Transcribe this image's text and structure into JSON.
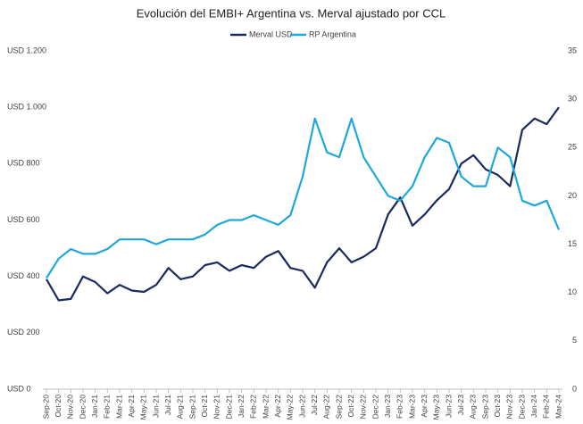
{
  "chart_data": {
    "type": "line",
    "title": "Evolución del EMBI+ Argentina vs. Merval ajustado por CCL",
    "categories": [
      "Sep-20",
      "Oct-20",
      "Nov-20",
      "Dec-20",
      "Jan-21",
      "Feb-21",
      "Mar-21",
      "Apr-21",
      "May-21",
      "Jun-21",
      "Jul-21",
      "Aug-21",
      "Sep-21",
      "Oct-21",
      "Nov-21",
      "Dec-21",
      "Jan-22",
      "Feb-22",
      "Mar-22",
      "Apr-22",
      "May-22",
      "Jun-22",
      "Jul-22",
      "Aug-22",
      "Sep-22",
      "Oct-22",
      "Nov-22",
      "Dec-22",
      "Jan-23",
      "Feb-23",
      "Mar-23",
      "Apr-23",
      "May-23",
      "Jun-23",
      "Jul-23",
      "Aug-23",
      "Sep-23",
      "Oct-23",
      "Nov-23",
      "Dec-23",
      "Jan-24",
      "Feb-24",
      "Mar-24"
    ],
    "series": [
      {
        "name": "Merval USD",
        "color": "#1b2a5e",
        "axis": "y",
        "values": [
          390,
          315,
          320,
          400,
          380,
          340,
          370,
          350,
          345,
          370,
          430,
          390,
          400,
          440,
          450,
          420,
          440,
          430,
          470,
          490,
          430,
          420,
          360,
          450,
          500,
          450,
          470,
          500,
          620,
          680,
          580,
          620,
          670,
          710,
          800,
          830,
          780,
          760,
          720,
          920,
          960,
          940,
          1000
        ]
      },
      {
        "name": "RP Argentina",
        "color": "#1fa7dc",
        "axis": "y2",
        "values": [
          11.5,
          13.5,
          14.5,
          14,
          14,
          14.5,
          15.5,
          15.5,
          15.5,
          15,
          15.5,
          15.5,
          15.5,
          16,
          17,
          17.5,
          17.5,
          18,
          17.5,
          17,
          18,
          22,
          28,
          24.5,
          24,
          28,
          24,
          22,
          20,
          19.5,
          21,
          24,
          26,
          25.5,
          22,
          21,
          21,
          25,
          24,
          19.5,
          19,
          19.5,
          16.5
        ]
      }
    ],
    "ylim": [
      0,
      1200
    ],
    "yticks": [
      {
        "value": 0,
        "label": "USD 0"
      },
      {
        "value": 200,
        "label": "USD 200"
      },
      {
        "value": 400,
        "label": "USD 400"
      },
      {
        "value": 600,
        "label": "USD 600"
      },
      {
        "value": 800,
        "label": "USD 800"
      },
      {
        "value": 1000,
        "label": "USD 1.000"
      },
      {
        "value": 1200,
        "label": "USD 1.200"
      }
    ],
    "y2lim": [
      0,
      35
    ],
    "y2ticks": [
      0,
      5,
      10,
      15,
      20,
      25,
      30,
      35
    ],
    "legend": "top"
  }
}
